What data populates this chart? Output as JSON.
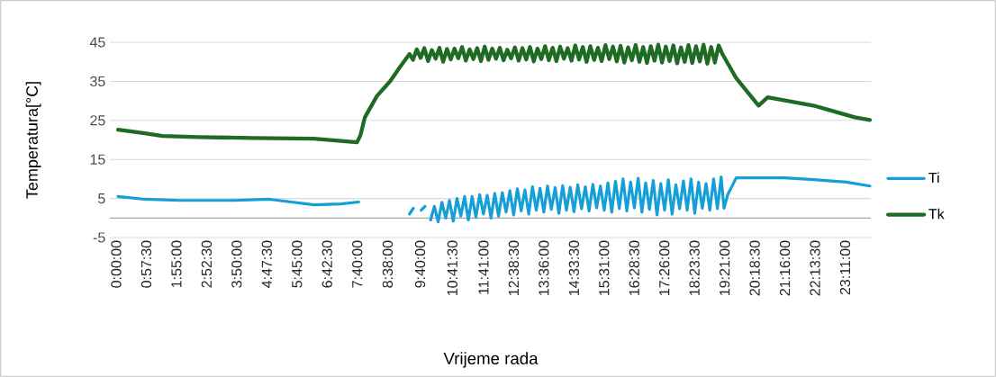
{
  "chart_data": {
    "type": "line",
    "xlabel": "Vrijeme rada",
    "ylabel": "Temperatura[°C]",
    "xlim": [
      -0.2,
      24
    ],
    "ylim": [
      -5,
      45
    ],
    "xticks": [
      {
        "value": 0,
        "label": "0:00:00"
      },
      {
        "value": 0.9583,
        "label": "0:57:30"
      },
      {
        "value": 1.9167,
        "label": "1:55:00"
      },
      {
        "value": 2.875,
        "label": "2:52:30"
      },
      {
        "value": 3.8333,
        "label": "3:50:00"
      },
      {
        "value": 4.7917,
        "label": "4:47:30"
      },
      {
        "value": 5.75,
        "label": "5:45:00"
      },
      {
        "value": 6.7083,
        "label": "6:42:30"
      },
      {
        "value": 7.6667,
        "label": "7:40:00"
      },
      {
        "value": 8.6333,
        "label": "8:38:00"
      },
      {
        "value": 9.6667,
        "label": "9:40:00"
      },
      {
        "value": 10.6917,
        "label": "10:41:30"
      },
      {
        "value": 11.6833,
        "label": "11:41:00"
      },
      {
        "value": 12.6417,
        "label": "12:38:30"
      },
      {
        "value": 13.6,
        "label": "13:36:00"
      },
      {
        "value": 14.5583,
        "label": "14:33:30"
      },
      {
        "value": 15.5167,
        "label": "15:31:00"
      },
      {
        "value": 16.475,
        "label": "16:28:30"
      },
      {
        "value": 17.4333,
        "label": "17:26:00"
      },
      {
        "value": 18.3917,
        "label": "18:23:30"
      },
      {
        "value": 19.35,
        "label": "19:21:00"
      },
      {
        "value": 20.3083,
        "label": "20:18:30"
      },
      {
        "value": 21.2667,
        "label": "21:16:00"
      },
      {
        "value": 22.225,
        "label": "22:13:30"
      },
      {
        "value": 23.1833,
        "label": "23:11:00"
      }
    ],
    "yticks": [
      -5,
      5,
      15,
      25,
      35,
      45
    ],
    "grid": "y",
    "legend": "right",
    "line_style": "solid",
    "ref_lines": [
      {
        "axis": "y",
        "value": 0,
        "color": "#a6a6a6"
      }
    ],
    "series": [
      {
        "name": "Ti",
        "color": "#159fd7",
        "x": [
          0.06,
          0.91,
          2.04,
          3.74,
          4.88,
          6.29,
          7.15,
          7.71,
          8.5,
          9.33,
          9.45,
          9.58,
          9.7,
          9.82,
          9.9,
          10.0,
          10.12,
          10.24,
          10.36,
          10.48,
          10.6,
          10.72,
          10.84,
          10.96,
          11.08,
          11.2,
          11.32,
          11.44,
          11.56,
          11.68,
          11.8,
          11.92,
          12.04,
          12.16,
          12.28,
          12.4,
          12.52,
          12.64,
          12.76,
          12.88,
          13.0,
          13.12,
          13.24,
          13.36,
          13.48,
          13.6,
          13.72,
          13.84,
          13.96,
          14.08,
          14.2,
          14.32,
          14.44,
          14.56,
          14.68,
          14.8,
          14.92,
          15.04,
          15.16,
          15.28,
          15.4,
          15.52,
          15.64,
          15.76,
          15.88,
          16.0,
          16.12,
          16.24,
          16.36,
          16.48,
          16.6,
          16.72,
          16.84,
          16.96,
          17.08,
          17.2,
          17.32,
          17.44,
          17.56,
          17.68,
          17.8,
          17.92,
          18.04,
          18.16,
          18.28,
          18.4,
          18.52,
          18.64,
          18.76,
          18.88,
          19.0,
          19.12,
          19.24,
          19.33,
          19.45,
          19.72,
          21.23,
          22.08,
          23.22,
          23.97
        ],
        "values": [
          5.5,
          4.8,
          4.5,
          4.5,
          4.8,
          3.4,
          3.6,
          4.1,
          null,
          1.0,
          2.5,
          null,
          2.0,
          3.0,
          null,
          -0.5,
          3.0,
          -1.0,
          4.0,
          0.0,
          4.5,
          -0.8,
          5.0,
          0.5,
          5.5,
          -0.5,
          5.5,
          0.2,
          6.0,
          1.0,
          5.8,
          0.0,
          6.3,
          0.5,
          6.5,
          1.5,
          7.0,
          0.8,
          7.5,
          1.8,
          7.2,
          1.0,
          8.0,
          2.0,
          7.6,
          1.5,
          8.2,
          2.2,
          7.8,
          1.2,
          8.3,
          2.0,
          7.9,
          1.6,
          8.5,
          2.4,
          8.0,
          1.8,
          8.6,
          2.6,
          8.2,
          2.0,
          9.0,
          1.5,
          9.4,
          2.4,
          10.0,
          1.8,
          9.2,
          2.6,
          10.2,
          1.5,
          9.0,
          2.2,
          9.6,
          0.8,
          8.8,
          2.0,
          9.8,
          1.0,
          8.5,
          2.4,
          9.5,
          2.0,
          10.0,
          1.2,
          9.2,
          2.5,
          8.8,
          2.0,
          10.0,
          2.4,
          10.5,
          2.5,
          6.0,
          10.3,
          10.3,
          9.9,
          9.2,
          8.2
        ]
      },
      {
        "name": "Tk",
        "color": "#1e6b24",
        "x": [
          0.06,
          0.91,
          1.47,
          2.61,
          4.31,
          6.29,
          7.66,
          7.77,
          7.91,
          8.29,
          8.72,
          9.02,
          9.33,
          9.44,
          9.56,
          9.68,
          9.8,
          9.92,
          10.04,
          10.16,
          10.28,
          10.4,
          10.52,
          10.64,
          10.76,
          10.88,
          11.0,
          11.12,
          11.24,
          11.36,
          11.48,
          11.6,
          11.72,
          11.84,
          11.96,
          12.08,
          12.2,
          12.32,
          12.44,
          12.56,
          12.68,
          12.8,
          12.92,
          13.04,
          13.16,
          13.28,
          13.4,
          13.52,
          13.64,
          13.76,
          13.88,
          14.0,
          14.12,
          14.24,
          14.36,
          14.48,
          14.6,
          14.72,
          14.84,
          14.96,
          15.08,
          15.2,
          15.32,
          15.44,
          15.56,
          15.68,
          15.8,
          15.92,
          16.04,
          16.16,
          16.28,
          16.4,
          16.52,
          16.64,
          16.76,
          16.88,
          17.0,
          17.12,
          17.24,
          17.36,
          17.48,
          17.6,
          17.72,
          17.84,
          17.96,
          18.08,
          18.2,
          18.32,
          18.44,
          18.56,
          18.68,
          18.8,
          18.92,
          19.04,
          19.16,
          19.28,
          19.72,
          20.43,
          20.72,
          22.17,
          22.66,
          23.49,
          23.97
        ],
        "values": [
          22.6,
          21.7,
          21.0,
          20.7,
          20.5,
          20.3,
          19.4,
          21.2,
          25.8,
          31.2,
          35.1,
          38.6,
          42.0,
          40.5,
          43.2,
          41.0,
          43.5,
          40.2,
          43.0,
          40.8,
          43.6,
          40.0,
          43.3,
          40.6,
          43.4,
          40.9,
          43.8,
          40.3,
          43.2,
          40.7,
          43.5,
          40.2,
          43.9,
          40.5,
          43.4,
          40.8,
          43.6,
          40.4,
          43.1,
          40.9,
          43.7,
          40.3,
          43.5,
          40.6,
          43.8,
          40.1,
          43.4,
          40.7,
          44.0,
          40.4,
          43.6,
          40.2,
          43.9,
          40.8,
          43.5,
          40.3,
          44.2,
          40.6,
          43.8,
          40.0,
          44.0,
          40.5,
          43.6,
          40.2,
          44.3,
          40.7,
          43.9,
          40.1,
          44.1,
          39.8,
          43.7,
          40.4,
          44.3,
          40.0,
          43.8,
          39.7,
          44.0,
          40.3,
          44.4,
          39.8,
          43.9,
          40.2,
          44.2,
          39.6,
          43.7,
          40.0,
          44.3,
          39.7,
          44.0,
          40.1,
          44.4,
          39.5,
          43.8,
          39.8,
          44.2,
          42.0,
          35.8,
          28.8,
          30.9,
          28.8,
          27.7,
          25.8,
          25.1
        ]
      }
    ]
  }
}
